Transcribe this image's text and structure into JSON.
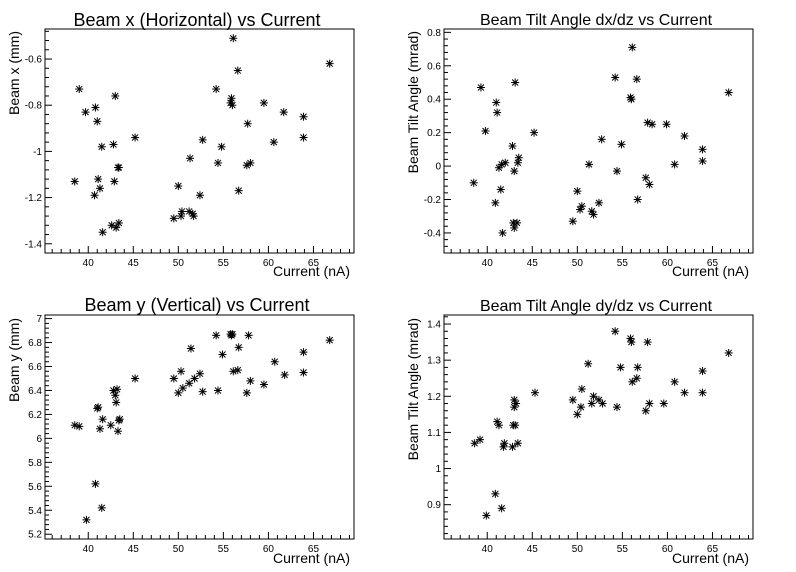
{
  "chart_data": [
    {
      "type": "scatter",
      "title": "Beam x (Horizontal) vs Current",
      "xlabel": "Current (nA)",
      "ylabel": "Beam x (mm)",
      "xlim": [
        35.2,
        69.5
      ],
      "ylim": [
        -1.44,
        -0.47
      ],
      "xticks": [
        40,
        45,
        50,
        55,
        60,
        65
      ],
      "yticks": [
        -1.4,
        -1.2,
        -1,
        -0.8,
        -0.6
      ],
      "ytick_labels": [
        "-1.4",
        "-1.2",
        "-1",
        "-0.8",
        "-0.6"
      ],
      "marker": "asterisk",
      "grid": false,
      "x": [
        38.5,
        39.0,
        39.7,
        40.8,
        41.0,
        40.7,
        41.1,
        41.3,
        41.5,
        41.6,
        42.6,
        42.8,
        42.9,
        43.0,
        43.3,
        43.1,
        43.4,
        43.4,
        45.2,
        49.5,
        50.0,
        50.3,
        50.4,
        51.2,
        51.3,
        51.6,
        51.7,
        52.4,
        52.7,
        54.2,
        54.4,
        54.8,
        55.8,
        55.9,
        56.0,
        56.1,
        56.6,
        56.7,
        57.6,
        57.7,
        58.0,
        59.5,
        60.6,
        61.7,
        63.9,
        63.9,
        66.8
      ],
      "y": [
        -1.13,
        -0.73,
        -0.83,
        -0.81,
        -0.87,
        -1.19,
        -1.12,
        -1.16,
        -0.98,
        -1.35,
        -1.32,
        -0.97,
        -1.13,
        -0.76,
        -1.07,
        -1.33,
        -1.07,
        -1.31,
        -0.94,
        -1.29,
        -1.15,
        -1.28,
        -1.26,
        -1.26,
        -1.03,
        -1.27,
        -1.28,
        -1.19,
        -0.95,
        -0.73,
        -1.05,
        -0.98,
        -0.79,
        -0.77,
        -0.8,
        -0.51,
        -0.65,
        -1.17,
        -1.06,
        -0.88,
        -1.05,
        -0.79,
        -0.96,
        -0.83,
        -0.85,
        -0.94,
        -0.62
      ]
    },
    {
      "type": "scatter",
      "title": "Beam Tilt Angle dx/dz vs Current",
      "xlabel": "Current (nA)",
      "ylabel": "Beam Tilt Angle (mrad)",
      "xlim": [
        35.2,
        69.5
      ],
      "ylim": [
        -0.52,
        0.82
      ],
      "xticks": [
        40,
        45,
        50,
        55,
        60,
        65
      ],
      "yticks": [
        -0.4,
        -0.2,
        0,
        0.2,
        0.4,
        0.6,
        0.8
      ],
      "ytick_labels": [
        "-0.4",
        "-0.2",
        "0",
        "0.2",
        "0.4",
        "0.6",
        "0.8"
      ],
      "marker": "asterisk",
      "grid": false,
      "x": [
        38.5,
        39.3,
        39.8,
        41.0,
        41.1,
        40.9,
        41.3,
        41.5,
        41.6,
        41.7,
        42.0,
        42.8,
        42.9,
        43.0,
        43.1,
        43.0,
        43.3,
        43.4,
        43.5,
        45.2,
        49.5,
        50.0,
        50.3,
        50.5,
        51.3,
        51.6,
        51.8,
        52.4,
        52.7,
        54.2,
        54.4,
        54.9,
        55.9,
        56.0,
        56.1,
        56.6,
        56.7,
        57.6,
        57.8,
        58.0,
        58.3,
        59.9,
        60.8,
        61.9,
        63.9,
        63.9,
        66.8
      ],
      "y": [
        -0.1,
        0.47,
        0.21,
        0.38,
        0.32,
        -0.22,
        -0.01,
        -0.14,
        0.01,
        -0.4,
        0.02,
        0.12,
        -0.34,
        -0.03,
        0.5,
        -0.37,
        -0.34,
        0.02,
        0.05,
        0.2,
        -0.33,
        -0.15,
        -0.26,
        -0.24,
        0.01,
        -0.27,
        -0.29,
        -0.22,
        0.16,
        0.53,
        -0.03,
        0.13,
        0.41,
        0.4,
        0.71,
        0.52,
        -0.2,
        -0.07,
        0.26,
        -0.11,
        0.25,
        0.25,
        0.01,
        0.18,
        0.1,
        0.03,
        0.44
      ]
    },
    {
      "type": "scatter",
      "title": "Beam y (Vertical) vs Current",
      "xlabel": "Current (nA)",
      "ylabel": "Beam y (mm)",
      "xlim": [
        35.2,
        69.5
      ],
      "ylim": [
        5.16,
        7.03
      ],
      "xticks": [
        40,
        45,
        50,
        55,
        60,
        65
      ],
      "yticks": [
        5.2,
        5.4,
        5.6,
        5.8,
        6,
        6.2,
        6.4,
        6.6,
        6.8,
        7
      ],
      "ytick_labels": [
        "5.2",
        "5.4",
        "5.6",
        "5.8",
        "6",
        "6.2",
        "6.4",
        "6.6",
        "6.8",
        "7"
      ],
      "marker": "asterisk",
      "grid": false,
      "x": [
        38.5,
        39.0,
        39.8,
        40.8,
        41.0,
        41.1,
        41.3,
        41.5,
        41.6,
        42.5,
        42.8,
        43.0,
        43.1,
        43.2,
        43.3,
        43.4,
        43.5,
        45.2,
        49.5,
        50.0,
        50.3,
        50.5,
        51.2,
        51.4,
        51.8,
        52.4,
        52.7,
        54.2,
        54.4,
        54.9,
        55.8,
        55.9,
        56.0,
        56.1,
        56.6,
        56.7,
        57.6,
        57.8,
        58.0,
        59.5,
        60.7,
        61.8,
        63.9,
        63.9,
        66.8
      ],
      "y": [
        6.11,
        6.1,
        5.32,
        5.62,
        6.25,
        6.26,
        6.08,
        5.42,
        6.16,
        6.11,
        6.4,
        6.36,
        6.3,
        6.41,
        6.06,
        6.15,
        6.16,
        6.5,
        6.5,
        6.38,
        6.56,
        6.42,
        6.46,
        6.75,
        6.5,
        6.54,
        6.39,
        6.86,
        6.4,
        6.7,
        6.87,
        6.86,
        6.87,
        6.56,
        6.57,
        6.76,
        6.38,
        6.86,
        6.48,
        6.45,
        6.64,
        6.53,
        6.72,
        6.55,
        6.82
      ]
    },
    {
      "type": "scatter",
      "title": "Beam Tilt Angle dy/dz vs Current",
      "xlabel": "Current (nA)",
      "ylabel": "Beam Tilt Angle (mrad)",
      "xlim": [
        35.2,
        69.5
      ],
      "ylim": [
        0.805,
        1.425
      ],
      "xticks": [
        40,
        45,
        50,
        55,
        60,
        65
      ],
      "yticks": [
        0.9,
        1,
        1.1,
        1.2,
        1.3,
        1.4
      ],
      "ytick_labels": [
        "0.9",
        "1",
        "1.1",
        "1.2",
        "1.3",
        "1.4"
      ],
      "marker": "asterisk",
      "grid": false,
      "x": [
        38.6,
        39.2,
        39.9,
        40.9,
        41.1,
        41.3,
        41.6,
        41.8,
        41.9,
        42.8,
        42.9,
        43.0,
        43.0,
        43.1,
        43.2,
        43.4,
        45.3,
        49.5,
        50.0,
        50.4,
        50.5,
        51.2,
        51.6,
        51.8,
        52.4,
        52.8,
        54.2,
        54.4,
        54.8,
        55.9,
        56.0,
        56.1,
        56.6,
        56.7,
        57.6,
        57.8,
        58.0,
        59.6,
        60.8,
        61.9,
        63.9,
        63.9,
        66.8
      ],
      "y": [
        1.07,
        1.08,
        0.87,
        0.93,
        1.13,
        1.12,
        0.89,
        1.06,
        1.07,
        1.06,
        1.12,
        1.19,
        1.17,
        1.12,
        1.18,
        1.07,
        1.21,
        1.19,
        1.15,
        1.17,
        1.22,
        1.29,
        1.18,
        1.2,
        1.19,
        1.18,
        1.38,
        1.17,
        1.28,
        1.36,
        1.35,
        1.24,
        1.25,
        1.28,
        1.16,
        1.35,
        1.18,
        1.18,
        1.24,
        1.21,
        1.27,
        1.21,
        1.32
      ]
    }
  ]
}
